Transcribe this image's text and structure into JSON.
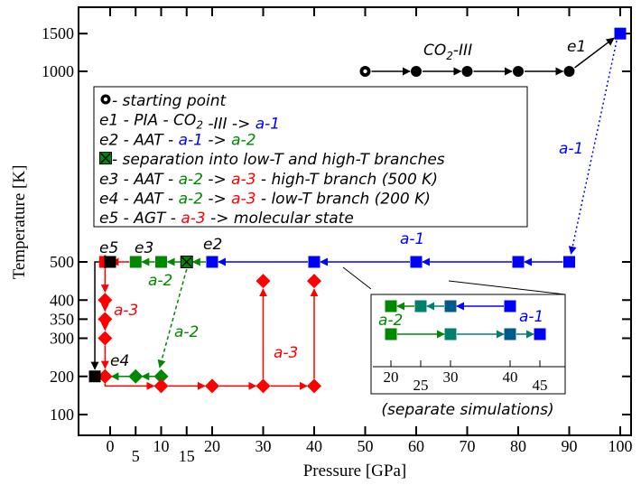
{
  "chart_data": {
    "type": "scatter",
    "title": "",
    "xlabel": "Pressure [GPa]",
    "ylabel": "Temperature [K]",
    "xlim": [
      -6,
      102
    ],
    "x_ticks_upper": [
      "0",
      "10",
      "20",
      "30",
      "40",
      "50",
      "60",
      "70",
      "80",
      "90",
      "100"
    ],
    "x_ticks_upper_values": [
      0,
      10,
      20,
      30,
      40,
      50,
      60,
      70,
      80,
      90,
      100
    ],
    "x_ticks_lower": [
      "5",
      "15"
    ],
    "x_ticks_lower_values": [
      5,
      15
    ],
    "y_ticks_lower": [
      "100",
      "200",
      "300",
      "350",
      "400",
      "500"
    ],
    "y_ticks_lower_values": [
      100,
      200,
      300,
      350,
      400,
      500
    ],
    "y_ticks_upper": [
      "1000",
      "1500"
    ],
    "y_ticks_upper_values": [
      1000,
      1500
    ],
    "axis_note": "broken temperature axis: 100-500 K and 1000-1500 K",
    "colors": {
      "co2iii": "#000000",
      "a1": "#0000ff",
      "a2": "#008800",
      "a3": "#ff0000",
      "inset_teal": "#007f6e",
      "inset_darkblue": "#005a8c"
    },
    "series": [
      {
        "name": "CO2-III",
        "marker": "circle",
        "color": "#000000",
        "points": [
          [
            50,
            1000
          ],
          [
            60,
            1000
          ],
          [
            70,
            1000
          ],
          [
            80,
            1000
          ],
          [
            90,
            1000
          ]
        ]
      },
      {
        "name": "a-1",
        "marker": "square",
        "color": "#0000ff",
        "points": [
          [
            100,
            1500
          ],
          [
            90,
            500
          ],
          [
            80,
            500
          ],
          [
            60,
            500
          ],
          [
            40,
            500
          ],
          [
            20,
            500
          ]
        ]
      },
      {
        "name": "a-2",
        "marker": "square",
        "color": "#008800",
        "points": [
          [
            10,
            500
          ],
          [
            5,
            500
          ]
        ]
      },
      {
        "name": "a-2 high-T start",
        "marker": "square-x",
        "color": "#008800",
        "points": [
          [
            15,
            500
          ]
        ]
      },
      {
        "name": "a-2 low-T",
        "marker": "diamond",
        "color": "#008800",
        "points": [
          [
            10,
            200
          ],
          [
            5,
            200
          ],
          [
            -1,
            200
          ]
        ]
      },
      {
        "name": "a-3 high-T",
        "marker": "square",
        "color": "#ff0000",
        "points": [
          [
            -1,
            500
          ]
        ]
      },
      {
        "name": "a-3 high-T decompression",
        "marker": "diamond",
        "color": "#ff0000",
        "points": [
          [
            -1,
            500
          ],
          [
            -1,
            400
          ],
          [
            -1,
            350
          ],
          [
            -1,
            300
          ],
          [
            -1,
            200
          ]
        ]
      },
      {
        "name": "a-3 low-T",
        "marker": "diamond",
        "color": "#ff0000",
        "points": [
          [
            10,
            175
          ],
          [
            20,
            175
          ],
          [
            30,
            175
          ],
          [
            40,
            175
          ],
          [
            30,
            450
          ],
          [
            40,
            450
          ]
        ]
      },
      {
        "name": "molecular state",
        "marker": "square",
        "color": "#000000",
        "points": [
          [
            -3,
            200
          ],
          [
            0,
            500
          ]
        ]
      }
    ],
    "annotations": {
      "co2iii": "CO2-III",
      "e1": "e1",
      "e2": "e2",
      "e3": "e3",
      "e4": "e4",
      "e5": "e5",
      "a1_top": "a-1",
      "a1_mid": "a-1",
      "a2_upper": "a-2",
      "a2_lower": "a-2",
      "a3_left": "a-3",
      "a3_right": "a-3"
    },
    "legend": {
      "placement": "top-left",
      "items": [
        {
          "marker": "circle",
          "parts": [
            {
              "t": " - starting point",
              "c": "#000000"
            }
          ]
        },
        {
          "marker": "",
          "parts": [
            {
              "t": "e1 - PIA - CO",
              "c": "#000000"
            },
            {
              "t": "2",
              "c": "#000000",
              "sub": true
            },
            {
              "t": " -III -> ",
              "c": "#000000"
            },
            {
              "t": "a-1",
              "c": "#0000ff"
            }
          ]
        },
        {
          "marker": "",
          "parts": [
            {
              "t": "e2 - AAT - ",
              "c": "#000000"
            },
            {
              "t": "a-1",
              "c": "#0000ff"
            },
            {
              "t": " -> ",
              "c": "#000000"
            },
            {
              "t": "a-2",
              "c": "#008800"
            }
          ]
        },
        {
          "marker": "square-x",
          "parts": [
            {
              "t": " - separation into low-T and high-T branches",
              "c": "#000000"
            }
          ]
        },
        {
          "marker": "",
          "parts": [
            {
              "t": "e3 - AAT - ",
              "c": "#000000"
            },
            {
              "t": "a-2",
              "c": "#008800"
            },
            {
              "t": " -> ",
              "c": "#000000"
            },
            {
              "t": "a-3",
              "c": "#ff0000"
            },
            {
              "t": "  - high-T branch (500 K)",
              "c": "#000000"
            }
          ]
        },
        {
          "marker": "",
          "parts": [
            {
              "t": "e4 - AAT - ",
              "c": "#000000"
            },
            {
              "t": "a-2",
              "c": "#008800"
            },
            {
              "t": " -> ",
              "c": "#000000"
            },
            {
              "t": "a-3",
              "c": "#ff0000"
            },
            {
              "t": "  - low-T branch (200 K)",
              "c": "#000000"
            }
          ]
        },
        {
          "marker": "",
          "parts": [
            {
              "t": "e5 - AGT - ",
              "c": "#000000"
            },
            {
              "t": "a-3",
              "c": "#ff0000"
            },
            {
              "t": " -> molecular state",
              "c": "#000000"
            }
          ]
        }
      ]
    },
    "inset": {
      "caption": "(separate simulations)",
      "x_ticks_upper": [
        "20",
        "30",
        "40"
      ],
      "x_ticks_upper_values": [
        20,
        30,
        40
      ],
      "x_ticks_lower": [
        "25",
        "45"
      ],
      "x_ticks_lower_values": [
        25,
        45
      ],
      "label_a1": "a-1",
      "label_a2": "a-2",
      "top_row": [
        {
          "p": 40,
          "color": "#0000ff"
        },
        {
          "p": 30,
          "color": "#005a8c"
        },
        {
          "p": 25,
          "color": "#007f6e"
        },
        {
          "p": 20,
          "color": "#008800"
        }
      ],
      "bottom_row": [
        {
          "p": 20,
          "color": "#008800"
        },
        {
          "p": 30,
          "color": "#007f6e"
        },
        {
          "p": 40,
          "color": "#005a8c"
        },
        {
          "p": 45,
          "color": "#0000ff"
        }
      ]
    }
  }
}
